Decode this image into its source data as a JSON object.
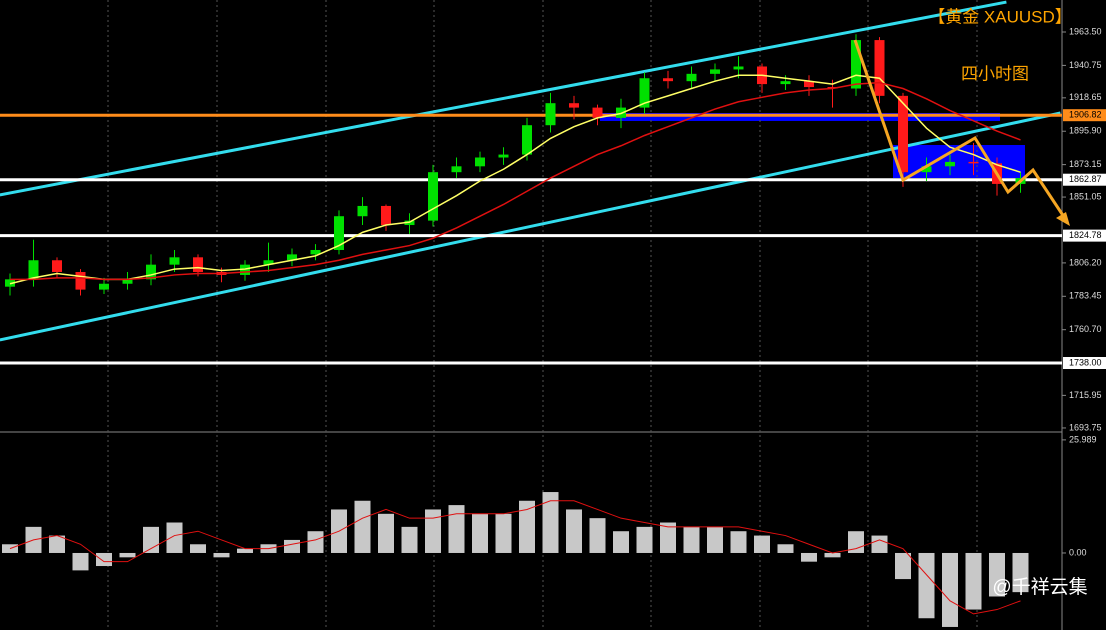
{
  "chart_data": [
    {
      "type": "candlestick",
      "title": "【黄金  XAUUSD】",
      "subtitle": "四小时图",
      "up_color": "#00e000",
      "down_color": "#ff1a1a",
      "open": [
        1790,
        1795,
        1808,
        1800,
        1788,
        1792,
        1795,
        1805,
        1810,
        1800,
        1798,
        1805,
        1808,
        1812,
        1815,
        1838,
        1845,
        1832,
        1835,
        1868,
        1872,
        1878,
        1880,
        1900,
        1915,
        1912,
        1905,
        1912,
        1932,
        1930,
        1935,
        1938,
        1940,
        1928,
        1930,
        1926,
        1925,
        1958,
        1920,
        1868,
        1872,
        1875,
        1874,
        1860
      ],
      "high": [
        1799,
        1822,
        1810,
        1802,
        1796,
        1800,
        1812,
        1815,
        1812,
        1803,
        1808,
        1820,
        1816,
        1819,
        1842,
        1851,
        1846,
        1840,
        1873,
        1878,
        1882,
        1885,
        1905,
        1922,
        1920,
        1914,
        1918,
        1936,
        1937,
        1940,
        1942,
        1947,
        1942,
        1934,
        1934,
        1931,
        1962,
        1960,
        1922,
        1878,
        1880,
        1888,
        1878,
        1868
      ],
      "low": [
        1784,
        1790,
        1796,
        1784,
        1785,
        1788,
        1791,
        1800,
        1797,
        1793,
        1794,
        1800,
        1804,
        1808,
        1812,
        1832,
        1828,
        1826,
        1831,
        1864,
        1868,
        1873,
        1876,
        1895,
        1904,
        1900,
        1898,
        1908,
        1925,
        1925,
        1930,
        1932,
        1922,
        1924,
        1920,
        1912,
        1920,
        1915,
        1858,
        1862,
        1866,
        1866,
        1852,
        1854
      ],
      "close": [
        1795,
        1808,
        1800,
        1788,
        1792,
        1795,
        1805,
        1810,
        1800,
        1798,
        1805,
        1808,
        1812,
        1815,
        1838,
        1845,
        1832,
        1835,
        1868,
        1872,
        1878,
        1880,
        1900,
        1915,
        1912,
        1905,
        1912,
        1932,
        1930,
        1935,
        1938,
        1940,
        1928,
        1930,
        1926,
        1925,
        1958,
        1920,
        1868,
        1872,
        1875,
        1874,
        1860,
        1864
      ],
      "lines": [
        {
          "color": "#ffff66",
          "values": [
            1792,
            1796,
            1799,
            1797,
            1795,
            1795,
            1798,
            1802,
            1803,
            1801,
            1802,
            1805,
            1808,
            1811,
            1818,
            1827,
            1832,
            1834,
            1843,
            1852,
            1862,
            1870,
            1880,
            1891,
            1899,
            1905,
            1908,
            1915,
            1920,
            1925,
            1930,
            1934,
            1934,
            1932,
            1930,
            1928,
            1934,
            1932,
            1915,
            1898,
            1885,
            1880,
            1873,
            1868
          ]
        },
        {
          "color": "#e01010",
          "values": [
            1795,
            1795,
            1796,
            1796,
            1795,
            1795,
            1796,
            1798,
            1799,
            1799,
            1800,
            1801,
            1803,
            1805,
            1808,
            1812,
            1815,
            1818,
            1823,
            1830,
            1838,
            1846,
            1855,
            1864,
            1872,
            1880,
            1886,
            1893,
            1899,
            1905,
            1911,
            1916,
            1919,
            1922,
            1924,
            1925,
            1928,
            1929,
            1925,
            1918,
            1910,
            1903,
            1896,
            1890
          ]
        }
      ],
      "trendlines": [
        {
          "color": "#33ddee",
          "x": [
            -0.43,
            42.4
          ],
          "y": [
            1852.5,
            1983.9
          ]
        },
        {
          "color": "#33ddee",
          "x": [
            -0.43,
            44.7
          ],
          "y": [
            1753.7,
            1908.3
          ]
        }
      ],
      "levels": [
        {
          "value": 1906.82,
          "label": "1906.82",
          "color": "#ff8c1a"
        },
        {
          "value": 1862.87,
          "label": "1862.87",
          "color": "#ffffff"
        },
        {
          "value": 1824.78,
          "label": "1824.78",
          "color": "#ffffff"
        },
        {
          "value": 1738.0,
          "label": "1738.00",
          "color": "#ffffff"
        }
      ],
      "ylim": [
        1691,
        1985.3
      ],
      "yticks": [
        {
          "value": 1963.5,
          "label": "1963.50"
        },
        1940.75,
        1918.65,
        {
          "value": 1895.9,
          "label": "1895.90"
        },
        1873.15,
        1851.05,
        {
          "value": 1806.2,
          "label": "1806.20"
        },
        1783.45,
        {
          "value": 1760.7,
          "label": "1760.70"
        },
        1715.95,
        1693.75
      ]
    },
    {
      "type": "bar",
      "color": "#c8c8c8",
      "signal_color": "#e01010",
      "values": [
        2,
        6,
        4,
        -4,
        -3,
        -1,
        6,
        7,
        2,
        -1,
        1,
        2,
        3,
        5,
        10,
        12,
        9,
        6,
        10,
        11,
        9,
        9,
        12,
        14,
        10,
        8,
        5,
        6,
        7,
        6,
        6,
        5,
        4,
        2,
        -2,
        -1,
        5,
        4,
        -6,
        -15,
        -17,
        -13,
        -10,
        -9
      ],
      "signal": [
        1,
        3,
        4,
        2,
        -2,
        -2,
        1,
        4,
        5,
        3,
        1,
        1,
        2,
        3,
        5,
        8,
        10,
        8,
        8,
        9,
        9,
        9,
        10,
        12,
        12,
        10,
        8,
        7,
        6,
        6,
        6,
        6,
        5,
        4,
        2,
        0,
        1,
        3,
        1,
        -5,
        -11,
        -14,
        -13,
        -11
      ],
      "ylim": [
        -17.7,
        27.8
      ],
      "yticks": [
        25.989,
        {
          "value": 0,
          "label": "0.00"
        }
      ]
    }
  ],
  "watermark": "@千祥云集"
}
